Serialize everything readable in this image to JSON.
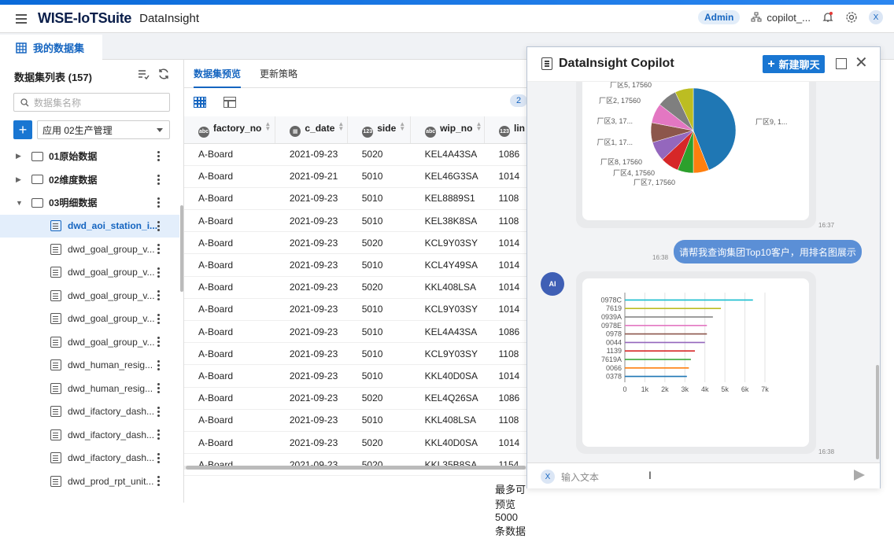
{
  "header": {
    "brand": "WISE-IoTSuite",
    "app_name": "DataInsight",
    "role_badge": "Admin",
    "username": "copilot_...",
    "user_initial": "X"
  },
  "tabs": {
    "active": "我的数据集"
  },
  "sidebar": {
    "title": "数据集列表 (157)",
    "search_placeholder": "数据集名称",
    "add_label": "+",
    "app_select": "应用 02生产管理",
    "folders": [
      "01原始数据",
      "02维度数据",
      "03明细数据"
    ],
    "items": [
      "dwd_aoi_station_i...",
      "dwd_goal_group_v...",
      "dwd_goal_group_v...",
      "dwd_goal_group_v...",
      "dwd_goal_group_v...",
      "dwd_goal_group_v...",
      "dwd_human_resig...",
      "dwd_human_resig...",
      "dwd_ifactory_dash...",
      "dwd_ifactory_dash...",
      "dwd_ifactory_dash...",
      "dwd_prod_rpt_unit..."
    ]
  },
  "main": {
    "subtabs": [
      "数据集预览",
      "更新策略"
    ],
    "count_pill": "2",
    "columns": [
      {
        "type": "abc",
        "name": "factory_no"
      },
      {
        "type": "date",
        "name": "c_date"
      },
      {
        "type": "123",
        "name": "side"
      },
      {
        "type": "abc",
        "name": "wip_no"
      },
      {
        "type": "123",
        "name": "lin"
      }
    ],
    "rows": [
      [
        "A-Board",
        "2021-09-23",
        "5020",
        "KEL4A43SA",
        "1086"
      ],
      [
        "A-Board",
        "2021-09-21",
        "5010",
        "KEL46G3SA",
        "1014"
      ],
      [
        "A-Board",
        "2021-09-23",
        "5010",
        "KEL8889S1",
        "1108"
      ],
      [
        "A-Board",
        "2021-09-23",
        "5010",
        "KEL38K8SA",
        "1108"
      ],
      [
        "A-Board",
        "2021-09-23",
        "5020",
        "KCL9Y03SY",
        "1014"
      ],
      [
        "A-Board",
        "2021-09-23",
        "5010",
        "KCL4Y49SA",
        "1014"
      ],
      [
        "A-Board",
        "2021-09-23",
        "5020",
        "KKL408LSA",
        "1014"
      ],
      [
        "A-Board",
        "2021-09-23",
        "5010",
        "KCL9Y03SY",
        "1014"
      ],
      [
        "A-Board",
        "2021-09-23",
        "5010",
        "KEL4A43SA",
        "1086"
      ],
      [
        "A-Board",
        "2021-09-23",
        "5010",
        "KCL9Y03SY",
        "1108"
      ],
      [
        "A-Board",
        "2021-09-23",
        "5010",
        "KKL40D0SA",
        "1014"
      ],
      [
        "A-Board",
        "2021-09-23",
        "5020",
        "KEL4Q26SA",
        "1086"
      ],
      [
        "A-Board",
        "2021-09-23",
        "5010",
        "KKL408LSA",
        "1108"
      ],
      [
        "A-Board",
        "2021-09-23",
        "5020",
        "KKL40D0SA",
        "1014"
      ],
      [
        "A-Board",
        "2021-09-23",
        "5020",
        "KKL35B8SA",
        "1154"
      ]
    ],
    "footer_text": "最多可预览5000条数据"
  },
  "copilot": {
    "title": "DataInsight Copilot",
    "new_chat": "新建聊天",
    "ts1": "16:37",
    "user_msg": "请帮我查询集团Top10客户，用排名图展示",
    "ts2": "16:38",
    "ai_avatar": "AI",
    "ts3": "16:38",
    "input_placeholder": "输入文本",
    "input_badge": "X"
  },
  "chart_data": [
    {
      "type": "pie",
      "categories": [
        "厂区9, 1...",
        "厂区7, 17560",
        "厂区4, 17560",
        "厂区8, 17560",
        "厂区1, 17...",
        "厂区3, 17...",
        "厂区2, 17560",
        "厂区5, 17560"
      ],
      "values": [
        17560,
        17560,
        17560,
        17560,
        17560,
        17560,
        17560,
        17560
      ],
      "colors": [
        "#1f77b4",
        "#ff7f0e",
        "#2ca02c",
        "#d62728",
        "#9467bd",
        "#8c564b",
        "#e377c2",
        "#7f7f7f",
        "#bcbd22"
      ]
    },
    {
      "type": "bar",
      "orientation": "horizontal",
      "categories": [
        "0978C",
        "7619",
        "0939A",
        "0978E",
        "0978",
        "0044",
        "1139",
        "7619A",
        "0066",
        "0378"
      ],
      "values": [
        6400,
        4800,
        4400,
        4100,
        4100,
        4000,
        3500,
        3300,
        3200,
        3100
      ],
      "colors": [
        "#17becf",
        "#bcbd22",
        "#7f7f7f",
        "#e377c2",
        "#8c564b",
        "#9467bd",
        "#d62728",
        "#2ca02c",
        "#ff7f0e",
        "#1f77b4"
      ],
      "xlim": [
        0,
        7000
      ],
      "xticks": [
        "0",
        "1k",
        "2k",
        "3k",
        "4k",
        "5k",
        "6k",
        "7k"
      ],
      "grid": true
    }
  ]
}
